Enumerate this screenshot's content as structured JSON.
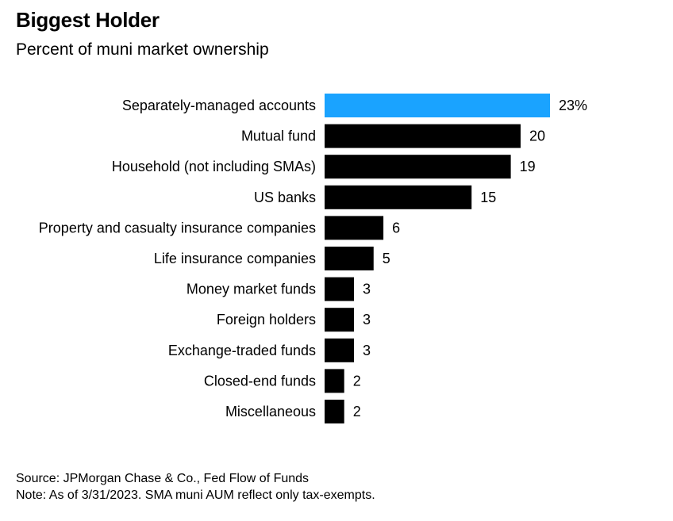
{
  "header": {
    "title": "Biggest Holder",
    "subtitle": "Percent of muni market ownership"
  },
  "footer": {
    "source": "Source: JPMorgan Chase & Co., Fed Flow of Funds",
    "note": "Note: As of 3/31/2023. SMA muni AUM reflect only tax-exempts."
  },
  "colors": {
    "highlight": "#1aa3ff",
    "default": "#000000"
  },
  "chart_data": {
    "type": "bar",
    "orientation": "horizontal",
    "title": "Biggest Holder",
    "subtitle": "Percent of muni market ownership",
    "categories": [
      "Separately-managed accounts",
      "Mutual fund",
      "Household (not including SMAs)",
      "US banks",
      "Property and casualty insurance companies",
      "Life insurance companies",
      "Money market funds",
      "Foreign holders",
      "Exchange-traded funds",
      "Closed-end funds",
      "Miscellaneous"
    ],
    "values": [
      23,
      20,
      19,
      15,
      6,
      5,
      3,
      3,
      3,
      2,
      2
    ],
    "data_labels": [
      "23%",
      "20",
      "19",
      "15",
      "6",
      "5",
      "3",
      "3",
      "3",
      "2",
      "2"
    ],
    "highlight_index": 0,
    "xlim": [
      0,
      23
    ],
    "grid": false,
    "legend": "none"
  }
}
